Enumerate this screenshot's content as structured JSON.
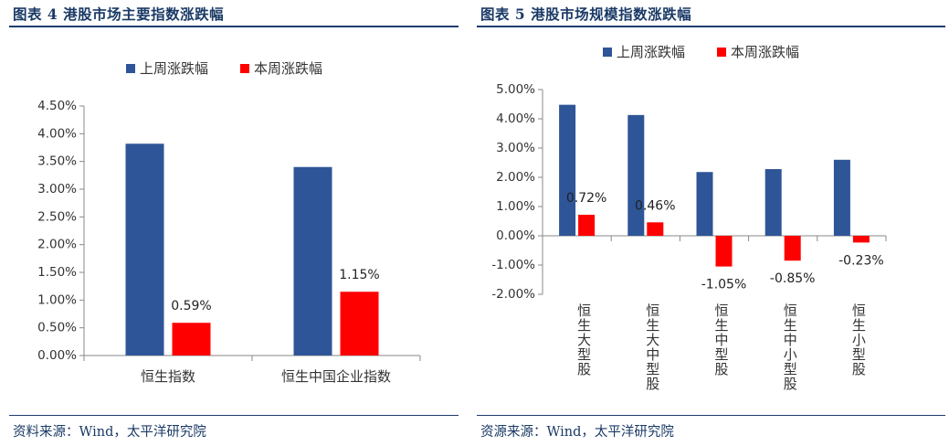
{
  "left": {
    "title": "图表 4 港股市场主要指数涨跌幅",
    "source": "资料来源：Wind，太平洋研究院",
    "chart_data": {
      "type": "bar",
      "categories": [
        "恒生指数",
        "恒生中国企业指数"
      ],
      "series": [
        {
          "name": "上周涨跌幅",
          "values": [
            3.82,
            3.4
          ],
          "color": "#2e5597"
        },
        {
          "name": "本周涨跌幅",
          "values": [
            0.59,
            1.15
          ],
          "color": "#ff0000"
        }
      ],
      "data_labels": [
        {
          "series": 1,
          "index": 0,
          "text": "0.59%"
        },
        {
          "series": 1,
          "index": 1,
          "text": "1.15%"
        }
      ],
      "ylim": [
        0,
        4.5
      ],
      "yticks": [
        {
          "value": 4.5,
          "label": "4.50%"
        },
        {
          "value": 4.0,
          "label": "4.00%"
        },
        {
          "value": 3.5,
          "label": "3.50%"
        },
        {
          "value": 3.0,
          "label": "3.00%"
        },
        {
          "value": 2.5,
          "label": "2.50%"
        },
        {
          "value": 2.0,
          "label": "2.00%"
        },
        {
          "value": 1.5,
          "label": "1.50%"
        },
        {
          "value": 1.0,
          "label": "1.00%"
        },
        {
          "value": 0.5,
          "label": "0.50%"
        },
        {
          "value": 0.0,
          "label": "0.00%"
        }
      ],
      "legend_position": "top",
      "grid": false
    }
  },
  "right": {
    "title": "图表 5 港股市场规模指数涨跌幅",
    "source": "资源来源：Wind，太平洋研究院",
    "chart_data": {
      "type": "bar",
      "categories": [
        "恒生大型股",
        "恒生大中型股",
        "恒生中型股",
        "恒生中小型股",
        "恒生小型股"
      ],
      "series": [
        {
          "name": "上周涨跌幅",
          "values": [
            4.48,
            4.13,
            2.18,
            2.28,
            2.6
          ],
          "color": "#2e5597"
        },
        {
          "name": "本周涨跌幅",
          "values": [
            0.72,
            0.46,
            -1.05,
            -0.85,
            -0.23
          ],
          "color": "#ff0000"
        }
      ],
      "data_labels": [
        {
          "series": 1,
          "index": 0,
          "text": "0.72%"
        },
        {
          "series": 1,
          "index": 1,
          "text": "0.46%"
        },
        {
          "series": 1,
          "index": 2,
          "text": "-1.05%"
        },
        {
          "series": 1,
          "index": 3,
          "text": "-0.85%"
        },
        {
          "series": 1,
          "index": 4,
          "text": "-0.23%"
        }
      ],
      "ylim": [
        -2,
        5
      ],
      "yticks": [
        {
          "value": 5,
          "label": "5.00%"
        },
        {
          "value": 4,
          "label": "4.00%"
        },
        {
          "value": 3,
          "label": "3.00%"
        },
        {
          "value": 2,
          "label": "2.00%"
        },
        {
          "value": 1,
          "label": "1.00%"
        },
        {
          "value": 0,
          "label": "0.00%"
        },
        {
          "value": -1,
          "label": "-1.00%"
        },
        {
          "value": -2,
          "label": "-2.00%"
        }
      ],
      "legend_position": "top",
      "grid": false
    }
  }
}
